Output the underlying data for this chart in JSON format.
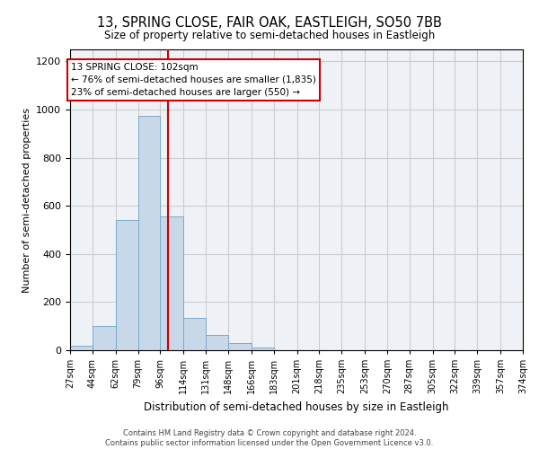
{
  "title": "13, SPRING CLOSE, FAIR OAK, EASTLEIGH, SO50 7BB",
  "subtitle": "Size of property relative to semi-detached houses in Eastleigh",
  "xlabel": "Distribution of semi-detached houses by size in Eastleigh",
  "ylabel": "Number of semi-detached properties",
  "footer_line1": "Contains HM Land Registry data © Crown copyright and database right 2024.",
  "footer_line2": "Contains public sector information licensed under the Open Government Licence v3.0.",
  "annotation_title": "13 SPRING CLOSE: 102sqm",
  "annotation_line1": "← 76% of semi-detached houses are smaller (1,835)",
  "annotation_line2": "23% of semi-detached houses are larger (550) →",
  "property_size_sqm": 102,
  "bin_edges": [
    27,
    44,
    62,
    79,
    96,
    114,
    131,
    148,
    166,
    183,
    201,
    218,
    235,
    253,
    270,
    287,
    305,
    322,
    339,
    357,
    374
  ],
  "bin_counts": [
    20,
    100,
    540,
    975,
    555,
    135,
    62,
    28,
    10,
    0,
    0,
    0,
    0,
    0,
    0,
    0,
    0,
    0,
    0,
    0
  ],
  "bar_color": "#c8d8e8",
  "bar_edge_color": "#7aabcc",
  "red_line_x": 102,
  "ylim": [
    0,
    1250
  ],
  "yticks": [
    0,
    200,
    400,
    600,
    800,
    1000,
    1200
  ],
  "annotation_box_color": "white",
  "annotation_box_edge_color": "#cc0000",
  "red_line_color": "#cc0000",
  "grid_color": "#cccccc",
  "background_color": "#eef2f7"
}
